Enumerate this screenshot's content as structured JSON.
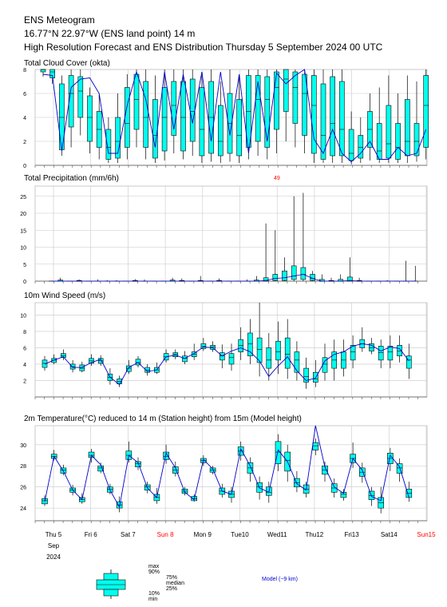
{
  "header": {
    "title": "ENS Meteogram",
    "location": "16.77°N 22.97°W (ENS land point) 14 m",
    "subtitle": "High Resolution Forecast and ENS Distribution Thursday 5 September 2024 00 UTC"
  },
  "colors": {
    "box_fill": "#00ffee",
    "hres_line": "#0000cc",
    "grid": "#c8c8c8",
    "weekend": "#ff0000"
  },
  "x_axis": {
    "labels": [
      "Thu 5",
      "Fri 6",
      "Sat 7",
      "Sun 8",
      "Mon 9",
      "Tue10",
      "Wed11",
      "Thu12",
      "Fri13",
      "Sat14",
      "Sun15"
    ],
    "weekend_labels": [
      "Sun 8",
      "Sun15"
    ],
    "month": "Sep",
    "year": "2024"
  },
  "legend": {
    "max": "max",
    "p90": "90%",
    "p75": "75%",
    "median": "median",
    "p25": "25%",
    "p10": "10%",
    "min": "min",
    "model": "Model (~9 km)"
  },
  "chart_data": [
    {
      "type": "box",
      "title": "Total Cloud Cover (okta)",
      "ylim": [
        0,
        8
      ],
      "yticks": [
        0,
        2,
        4,
        6,
        8
      ],
      "steps": 42,
      "hres": [
        7.6,
        7.5,
        1.2,
        6.5,
        7.2,
        7.3,
        6.0,
        1.0,
        1.0,
        5.0,
        7.8,
        5.5,
        1.5,
        7.8,
        3.0,
        7.6,
        3.5,
        7.8,
        2.0,
        7.8,
        2.5,
        7.6,
        1.0,
        7.0,
        2.0,
        7.7,
        6.8,
        7.5,
        8.0,
        2.2,
        1.0,
        3.0,
        1.0,
        0.3,
        1.0,
        2.0,
        0.5,
        0.5,
        1.5,
        0.8,
        1.0,
        3.0
      ],
      "boxes": [
        [
          7.4,
          7.8,
          8,
          8,
          8
        ],
        [
          6.8,
          7.3,
          7.8,
          8,
          8
        ],
        [
          0.8,
          1.3,
          4,
          6.8,
          7.5
        ],
        [
          1.5,
          3.2,
          6,
          7.5,
          8
        ],
        [
          2.5,
          4,
          6.2,
          7.4,
          8
        ],
        [
          1,
          2,
          4,
          5.8,
          6.5
        ],
        [
          0.5,
          1.5,
          3,
          4.5,
          6
        ],
        [
          0.2,
          0.5,
          1.5,
          3,
          4
        ],
        [
          0.2,
          0.6,
          2,
          4,
          6
        ],
        [
          0.5,
          1.5,
          3.5,
          6.5,
          7.6
        ],
        [
          1.5,
          3,
          5.5,
          7.6,
          8
        ],
        [
          0.5,
          1.5,
          4,
          7,
          8
        ],
        [
          0.2,
          0.6,
          2.5,
          5.5,
          7.5
        ],
        [
          0.4,
          1.2,
          4,
          6.5,
          8
        ],
        [
          1,
          2.5,
          5,
          7,
          8
        ],
        [
          0.5,
          1.2,
          4,
          7,
          8
        ],
        [
          0.8,
          2,
          4.5,
          7.2,
          8
        ],
        [
          0.2,
          0.8,
          3,
          6.5,
          7.5
        ],
        [
          0.3,
          1,
          4,
          7,
          8
        ],
        [
          0.2,
          0.8,
          2,
          5,
          7
        ],
        [
          0.3,
          1,
          3.5,
          6,
          8
        ],
        [
          0.2,
          0.8,
          2.5,
          5.5,
          7.5
        ],
        [
          0.5,
          1.5,
          4.5,
          7.5,
          8
        ],
        [
          0.8,
          2,
          5.5,
          7.5,
          8
        ],
        [
          0.5,
          1.5,
          5.5,
          7.4,
          8
        ],
        [
          1,
          3,
          6.5,
          7.8,
          8
        ],
        [
          2,
          4.5,
          7.2,
          8,
          8
        ],
        [
          1.5,
          3.5,
          6.5,
          7.8,
          8
        ],
        [
          1,
          2.5,
          6,
          7.6,
          8
        ],
        [
          0.2,
          1,
          5,
          7.5,
          8
        ],
        [
          0.2,
          0.5,
          2.5,
          6.8,
          8
        ],
        [
          0.2,
          0.8,
          3.5,
          7.4,
          8
        ],
        [
          0.2,
          0.8,
          3,
          7,
          8
        ],
        [
          0.1,
          0.4,
          1,
          3,
          4.5
        ],
        [
          0.2,
          0.6,
          1.5,
          2.5,
          4
        ],
        [
          0.4,
          1.5,
          3,
          4.5,
          6
        ],
        [
          0.2,
          0.5,
          1.2,
          3.5,
          6.5
        ],
        [
          0.2,
          0.6,
          1.8,
          5,
          7.5
        ],
        [
          0.2,
          0.5,
          1.5,
          3.5,
          6
        ],
        [
          0.2,
          0.8,
          2,
          5.5,
          7.5
        ],
        [
          0.3,
          0.8,
          2,
          3.5,
          7
        ],
        [
          0.5,
          1.5,
          5,
          7.5,
          8
        ]
      ]
    },
    {
      "type": "box",
      "title": "Total Precipitation (mm/6h)",
      "ylim": [
        0,
        28
      ],
      "yticks": [
        0,
        5,
        10,
        15,
        20,
        25
      ],
      "max_label": "49",
      "steps": 40,
      "boxes": [
        [
          0,
          0,
          0,
          0,
          0
        ],
        [
          0,
          0,
          0,
          0.3,
          1
        ],
        [
          0,
          0,
          0,
          0,
          0
        ],
        [
          0,
          0,
          0,
          0.2,
          0.5
        ],
        [
          0,
          0,
          0,
          0,
          0
        ],
        [
          0,
          0,
          0,
          0,
          0.5
        ],
        [
          0,
          0,
          0,
          0,
          0.3
        ],
        [
          0,
          0,
          0,
          0,
          0.3
        ],
        [
          0,
          0,
          0,
          0,
          0
        ],
        [
          0,
          0,
          0,
          0.2,
          0.6
        ],
        [
          0,
          0,
          0,
          0,
          0.5
        ],
        [
          0,
          0,
          0,
          0,
          0
        ],
        [
          0,
          0,
          0,
          0,
          0
        ],
        [
          0,
          0,
          0,
          0.3,
          1
        ],
        [
          0,
          0,
          0,
          0.2,
          0.8
        ],
        [
          0,
          0,
          0,
          0,
          0
        ],
        [
          0,
          0,
          0,
          0.2,
          1.5
        ],
        [
          0,
          0,
          0,
          0,
          0
        ],
        [
          0,
          0,
          0,
          0.2,
          0.8
        ],
        [
          0,
          0,
          0,
          0,
          0
        ],
        [
          0,
          0,
          0,
          0,
          0
        ],
        [
          0,
          0,
          0,
          0,
          0.5
        ],
        [
          0,
          0,
          0,
          0.3,
          1.5
        ],
        [
          0,
          0,
          0.2,
          1,
          17
        ],
        [
          0,
          0.2,
          0.8,
          2,
          15
        ],
        [
          0,
          0.2,
          1,
          3,
          7
        ],
        [
          0,
          0.5,
          1.5,
          4.5,
          25
        ],
        [
          0,
          0.5,
          2,
          4,
          26
        ],
        [
          0,
          0.2,
          0.8,
          2,
          3
        ],
        [
          0,
          0,
          0,
          0.5,
          2
        ],
        [
          0,
          0,
          0,
          0.2,
          1
        ],
        [
          0,
          0,
          0,
          0.5,
          2
        ],
        [
          0,
          0,
          0.2,
          1.2,
          7
        ],
        [
          0,
          0,
          0,
          0.2,
          1
        ],
        [
          0,
          0,
          0,
          0,
          0
        ],
        [
          0,
          0,
          0,
          0,
          0
        ],
        [
          0,
          0,
          0,
          0,
          0.3
        ],
        [
          0,
          0,
          0,
          0,
          0
        ],
        [
          0,
          0,
          0,
          0,
          6
        ],
        [
          0,
          0,
          0,
          0,
          4.5
        ]
      ]
    },
    {
      "type": "box",
      "title": "10m Wind Speed (m/s)",
      "ylim": [
        0,
        11.5
      ],
      "yticks": [
        2,
        4,
        6,
        8,
        10
      ],
      "steps": 40,
      "hres": [
        4.0,
        4.5,
        4.9,
        3.6,
        3.6,
        4.2,
        4.6,
        2.4,
        1.5,
        3.6,
        4.2,
        3.1,
        3.3,
        4.9,
        5.1,
        4.7,
        5.3,
        6.1,
        6.0,
        5.0,
        5.6,
        6.0,
        5.5,
        4.4,
        2.5,
        3.8,
        4.9,
        3.2,
        2.0,
        2.3,
        4.4,
        5.2,
        5.5,
        6.2,
        6.5,
        6.3,
        5.6,
        6.1,
        5.9,
        4.4
      ],
      "boxes": [
        [
          3.2,
          3.6,
          4.1,
          4.5,
          5
        ],
        [
          4,
          4.2,
          4.5,
          4.7,
          5.2
        ],
        [
          4.5,
          4.8,
          5,
          5.3,
          5.8
        ],
        [
          3,
          3.4,
          3.7,
          4,
          4.5
        ],
        [
          3,
          3.2,
          3.5,
          3.9,
          4.3
        ],
        [
          3.8,
          4.1,
          4.4,
          4.7,
          5.2
        ],
        [
          3.8,
          4.1,
          4.4,
          4.7,
          5.1
        ],
        [
          1.5,
          2,
          2.4,
          2.8,
          3.5
        ],
        [
          1.2,
          1.6,
          1.9,
          2.2,
          2.6
        ],
        [
          2.8,
          3.1,
          3.5,
          3.8,
          4.5
        ],
        [
          3.6,
          3.9,
          4.2,
          4.6,
          5
        ],
        [
          2.6,
          3,
          3.3,
          3.6,
          4
        ],
        [
          2.8,
          3,
          3.3,
          3.6,
          4.2
        ],
        [
          4.2,
          4.5,
          4.9,
          5.3,
          5.8
        ],
        [
          4.6,
          4.9,
          5.2,
          5.4,
          5.8
        ],
        [
          4,
          4.3,
          4.7,
          5,
          5.6
        ],
        [
          4.5,
          4.9,
          5.2,
          5.5,
          6.5
        ],
        [
          5.6,
          5.9,
          6.2,
          6.5,
          7.2
        ],
        [
          5.5,
          5.8,
          6.1,
          6.3,
          6.8
        ],
        [
          3.5,
          4.5,
          5,
          5.4,
          6.4
        ],
        [
          3.2,
          4,
          4.8,
          5.3,
          6.5
        ],
        [
          4.5,
          5.5,
          6.3,
          7,
          8.5
        ],
        [
          4,
          5,
          6.5,
          7.8,
          9.5
        ],
        [
          2.5,
          4.2,
          5.8,
          7.2,
          11.5
        ],
        [
          2,
          3.5,
          4.5,
          6,
          7.8
        ],
        [
          2.8,
          4.5,
          5.5,
          6.8,
          9.2
        ],
        [
          2.2,
          3.5,
          5.2,
          7.2,
          9.5
        ],
        [
          2,
          3,
          4.5,
          5.5,
          6.8
        ],
        [
          1,
          1.8,
          2.5,
          3.5,
          4.8
        ],
        [
          1.2,
          1.8,
          2.2,
          3,
          4.5
        ],
        [
          2,
          3,
          4,
          4.8,
          6.5
        ],
        [
          2,
          3.5,
          4.5,
          5.5,
          7
        ],
        [
          2.5,
          3.5,
          4.5,
          5.5,
          7
        ],
        [
          3.5,
          4.5,
          5.5,
          6.3,
          7.5
        ],
        [
          5.5,
          6,
          6.5,
          7,
          8.5
        ],
        [
          5.2,
          5.6,
          6,
          6.5,
          7.2
        ],
        [
          3.5,
          4.5,
          5.4,
          6.2,
          7
        ],
        [
          3.5,
          4.5,
          5.5,
          6.2,
          7.5
        ],
        [
          4.2,
          5,
          5.6,
          6.3,
          7.5
        ],
        [
          2.2,
          3.5,
          4.5,
          5,
          6.5
        ]
      ]
    },
    {
      "type": "box",
      "title": "2m Temperature(°C) reduced to 14 m (Station height) from 15m (Model height)",
      "ylim": [
        22.8,
        31.8
      ],
      "yticks": [
        24,
        26,
        28,
        30
      ],
      "steps": 40,
      "hres": [
        24.6,
        28.9,
        27.5,
        25.7,
        24.8,
        29.0,
        28.1,
        25.7,
        24.1,
        29.0,
        28.3,
        25.9,
        25.0,
        29.2,
        27.8,
        25.5,
        24.8,
        28.6,
        27.7,
        25.6,
        25.3,
        29.6,
        28.0,
        25.9,
        25.5,
        29.5,
        28.4,
        26.3,
        25.7,
        31.8,
        27.9,
        26.0,
        25.4,
        28.7,
        27.6,
        25.1,
        24.7,
        29.0,
        27.9,
        25.0
      ],
      "boxes": [
        [
          24.2,
          24.4,
          24.7,
          24.9,
          25.2
        ],
        [
          28.5,
          28.7,
          28.9,
          29.1,
          29.5
        ],
        [
          27.1,
          27.3,
          27.6,
          27.8,
          28.1
        ],
        [
          25.2,
          25.5,
          25.7,
          25.9,
          26.2
        ],
        [
          24.4,
          24.6,
          24.8,
          25,
          25.4
        ],
        [
          28.3,
          28.8,
          29,
          29.3,
          29.6
        ],
        [
          27.3,
          27.5,
          27.8,
          28,
          28.3
        ],
        [
          25.3,
          25.5,
          25.8,
          26,
          26.3
        ],
        [
          23.6,
          24,
          24.3,
          24.6,
          25.1
        ],
        [
          28.3,
          28.6,
          29,
          29.4,
          30.3
        ],
        [
          27.6,
          27.9,
          28.2,
          28.4,
          28.8
        ],
        [
          25.4,
          25.7,
          26,
          26.2,
          26.5
        ],
        [
          24.4,
          24.7,
          25,
          25.3,
          25.9
        ],
        [
          28.2,
          28.6,
          28.9,
          29.3,
          30
        ],
        [
          27,
          27.3,
          27.6,
          27.9,
          28.4
        ],
        [
          25.2,
          25.4,
          25.6,
          25.8,
          26
        ],
        [
          24.6,
          24.7,
          24.9,
          25.1,
          25.3
        ],
        [
          28,
          28.3,
          28.5,
          28.7,
          29
        ],
        [
          27.2,
          27.4,
          27.6,
          27.8,
          28
        ],
        [
          25,
          25.3,
          25.6,
          25.9,
          26.3
        ],
        [
          24.5,
          25,
          25.3,
          25.6,
          26
        ],
        [
          28.5,
          29,
          29.4,
          29.8,
          30.3
        ],
        [
          26.5,
          27.3,
          27.8,
          28.3,
          28.8
        ],
        [
          24.8,
          25.5,
          26,
          26.4,
          27
        ],
        [
          24.5,
          25.2,
          25.5,
          26,
          26.5
        ],
        [
          27.5,
          28.2,
          29.3,
          30.3,
          31
        ],
        [
          26.5,
          27.5,
          28.5,
          29.3,
          30
        ],
        [
          25.5,
          26,
          26.4,
          26.8,
          27.5
        ],
        [
          25,
          25.4,
          25.8,
          26.2,
          26.5
        ],
        [
          29,
          29.5,
          29.9,
          30.2,
          30.6
        ],
        [
          26.5,
          27.2,
          27.6,
          28,
          28.4
        ],
        [
          25,
          25.5,
          25.9,
          26.3,
          26.8
        ],
        [
          24.7,
          25,
          25.3,
          25.5,
          25.8
        ],
        [
          27.8,
          28.3,
          28.7,
          29.1,
          30.2
        ],
        [
          26.4,
          27,
          27.4,
          27.8,
          28.3
        ],
        [
          24.2,
          24.8,
          25.2,
          25.6,
          26
        ],
        [
          23.5,
          24,
          24.5,
          25,
          26
        ],
        [
          27.5,
          28.2,
          28.7,
          29.2,
          29.7
        ],
        [
          26.5,
          27.3,
          27.8,
          28.2,
          28.7
        ],
        [
          24.6,
          25,
          25.4,
          25.8,
          26.5
        ]
      ]
    }
  ]
}
